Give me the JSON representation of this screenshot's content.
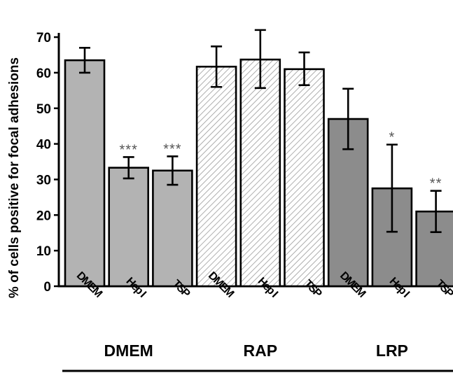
{
  "chart_data": {
    "type": "bar",
    "ylabel": "% of cells positive for focal adhesions",
    "xlabel": "",
    "ylim": [
      0,
      70
    ],
    "yticks": [
      0,
      10,
      20,
      30,
      40,
      50,
      60,
      70
    ],
    "categories": [
      "DMEM",
      "Hep I",
      "TSP",
      "DMEM",
      "Hep I",
      "TSP",
      "DMEM",
      "Hep I",
      "TSP"
    ],
    "groups": [
      {
        "label": "DMEM",
        "fill": "#b3b3b3",
        "pattern": "solid",
        "bars": [
          {
            "category": "DMEM",
            "value": 63.5,
            "err_low": 60,
            "err_high": 67,
            "significance": ""
          },
          {
            "category": "Hep I",
            "value": 33.3,
            "err_low": 30.3,
            "err_high": 36.3,
            "significance": "***"
          },
          {
            "category": "TSP",
            "value": 32.5,
            "err_low": 28.5,
            "err_high": 36.5,
            "significance": "***"
          }
        ]
      },
      {
        "label": "RAP",
        "fill": "#ffffff",
        "pattern": "hatched",
        "bars": [
          {
            "category": "DMEM",
            "value": 61.7,
            "err_low": 56,
            "err_high": 67.4,
            "significance": ""
          },
          {
            "category": "Hep I",
            "value": 63.7,
            "err_low": 55.7,
            "err_high": 72,
            "significance": ""
          },
          {
            "category": "TSP",
            "value": 61,
            "err_low": 56.5,
            "err_high": 65.7,
            "significance": ""
          }
        ]
      },
      {
        "label": "LRP",
        "fill": "#8c8c8c",
        "pattern": "solid",
        "bars": [
          {
            "category": "DMEM",
            "value": 47,
            "err_low": 38.5,
            "err_high": 55.5,
            "significance": ""
          },
          {
            "category": "Hep I",
            "value": 27.5,
            "err_low": 15.3,
            "err_high": 39.8,
            "significance": "*"
          },
          {
            "category": "TSP",
            "value": 21,
            "err_low": 15.2,
            "err_high": 26.8,
            "significance": "**"
          }
        ]
      }
    ],
    "grid": false,
    "legend": "none"
  }
}
